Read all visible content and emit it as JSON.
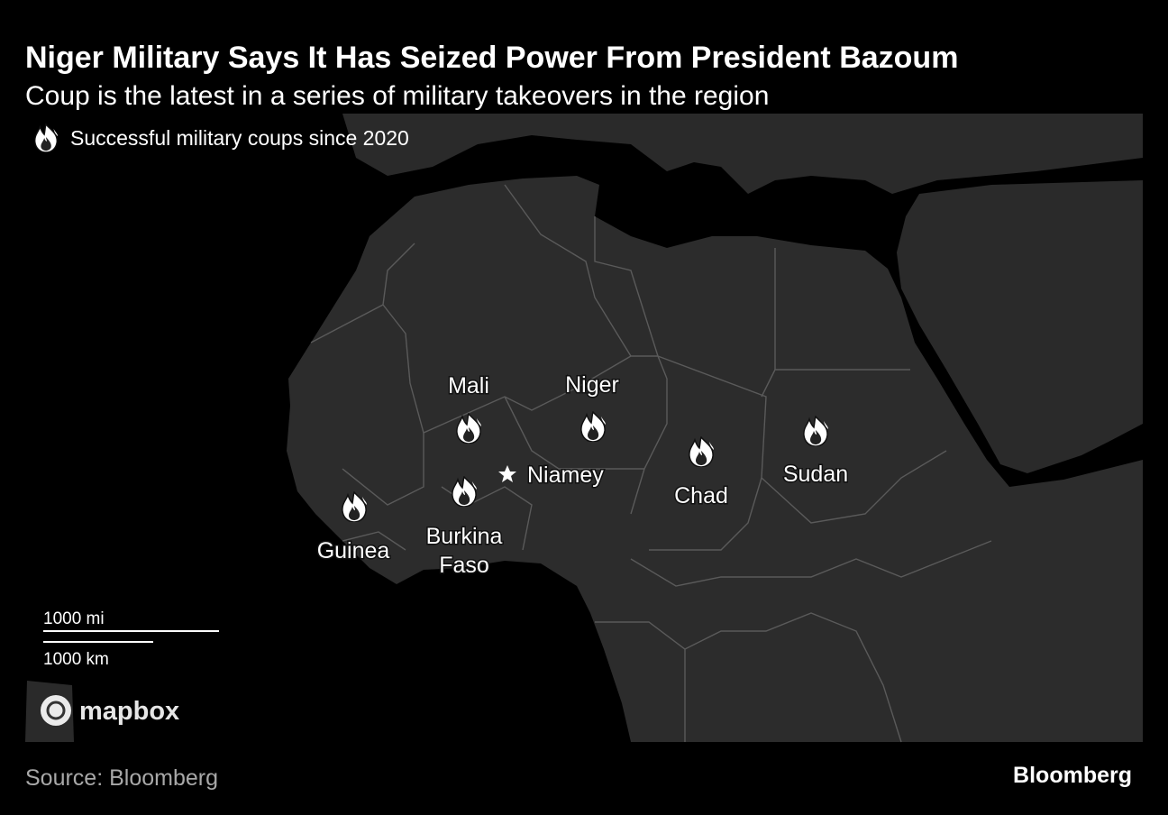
{
  "header": {
    "title": "Niger Military Says It Has Seized Power From President Bazoum",
    "subtitle": "Coup is the latest in a series of military takeovers in the region"
  },
  "legend": {
    "label": "Successful military coups since 2020"
  },
  "map": {
    "countries": [
      {
        "label_lines": [
          "Mali"
        ]
      },
      {
        "label_lines": [
          "Niger"
        ]
      },
      {
        "label_lines": [
          "Chad"
        ]
      },
      {
        "label_lines": [
          "Sudan"
        ]
      },
      {
        "label_lines": [
          "Guinea"
        ]
      },
      {
        "label_lines": [
          "Burkina",
          "Faso"
        ]
      }
    ],
    "capital": "Niamey",
    "scale": {
      "miles": "1000 mi",
      "km": "1000 km"
    },
    "attribution": "mapbox"
  },
  "footer": {
    "source": "Source: Bloomberg",
    "logo": "Bloomberg"
  }
}
